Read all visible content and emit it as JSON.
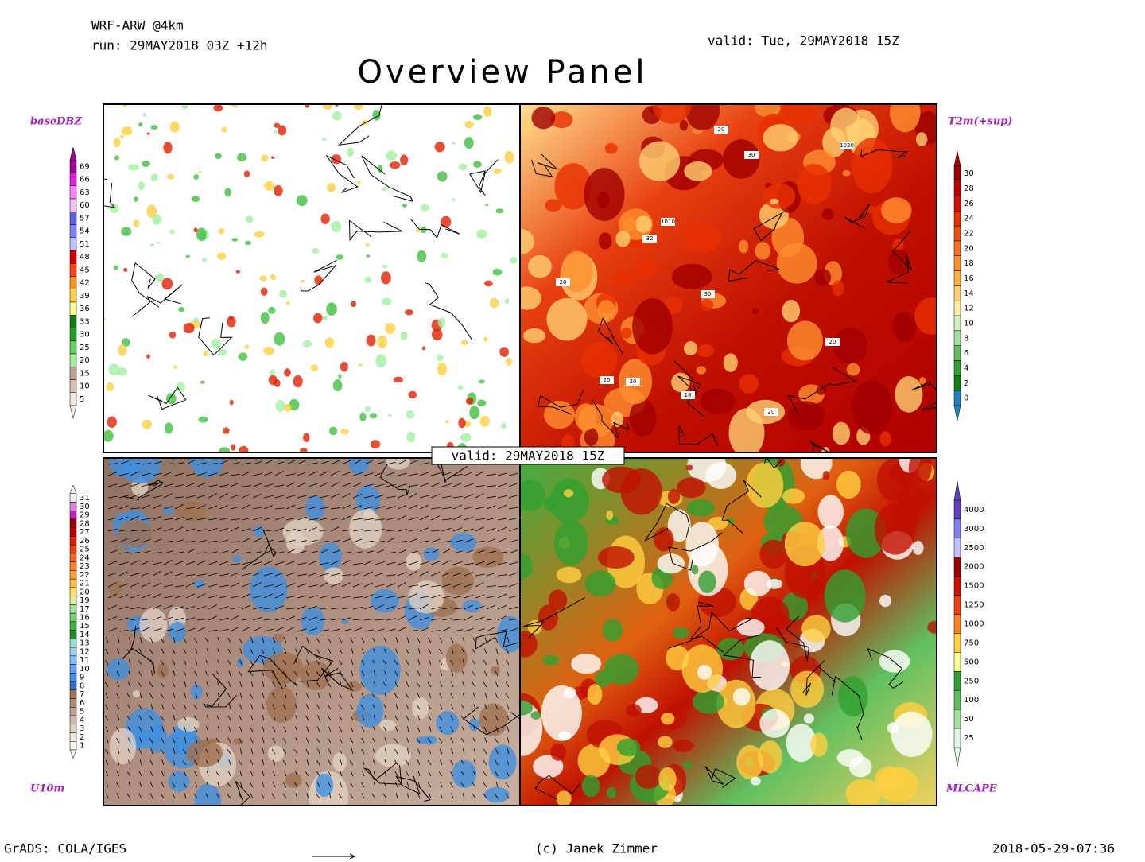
{
  "header": {
    "model": "WRF-ARW @4km",
    "run": "run: 29MAY2018 03Z +12h",
    "valid": "valid: Tue, 29MAY2018 15Z",
    "title": "Overview Panel"
  },
  "center_label": "valid: 29MAY2018 15Z",
  "panels": [
    {
      "label": "baseDBZ",
      "scale": [
        69,
        66,
        63,
        60,
        57,
        54,
        51,
        48,
        45,
        42,
        39,
        36,
        33,
        30,
        25,
        20,
        15,
        10,
        5
      ],
      "colors": [
        "#a000a0",
        "#e020e0",
        "#ff80ff",
        "#f0c0f0",
        "#6060e0",
        "#8080ff",
        "#c0c0ff",
        "#d00000",
        "#ff4010",
        "#ff9020",
        "#ffd040",
        "#ffff90",
        "#108010",
        "#20a020",
        "#60d060",
        "#a0f0a0",
        "#c0a090",
        "#d8c0b0",
        "#f0e8e0"
      ]
    },
    {
      "label": "T2m(+sup)",
      "scale": [
        30,
        28,
        26,
        24,
        22,
        20,
        18,
        16,
        14,
        12,
        10,
        8,
        6,
        4,
        2,
        0
      ],
      "colors": [
        "#a00000",
        "#c00000",
        "#d81000",
        "#e83000",
        "#f05010",
        "#f87020",
        "#ff9030",
        "#ffb040",
        "#ffd070",
        "#fff0a0",
        "#d0f0c0",
        "#a0e0a0",
        "#60c060",
        "#30a030",
        "#108010",
        "#2080c0"
      ],
      "map_labels": [
        "1020",
        "1010",
        "30",
        "20",
        "32",
        "20",
        "30",
        "20",
        "20",
        "18",
        "20",
        "20"
      ]
    },
    {
      "label": "U10m",
      "scale": [
        31,
        30,
        29,
        28,
        27,
        26,
        25,
        24,
        23,
        22,
        21,
        20,
        19,
        17,
        16,
        15,
        14,
        13,
        12,
        11,
        10,
        9,
        8,
        7,
        6,
        5,
        4,
        3,
        2,
        1
      ],
      "colors": [
        "#f0f0f0",
        "#e080e0",
        "#c020c0",
        "#a00000",
        "#c00000",
        "#e02000",
        "#f04010",
        "#f86020",
        "#ff8020",
        "#ffa030",
        "#ffc040",
        "#ffe060",
        "#e0f0a0",
        "#a0e0a0",
        "#70d070",
        "#40b040",
        "#209020",
        "#90e0d0",
        "#a0d0f0",
        "#80c0f0",
        "#60a0f0",
        "#4090e0",
        "#3070d0",
        "#a07050",
        "#b08870",
        "#c0a090",
        "#d0b8a8",
        "#e0d0c0",
        "#f0e8e0",
        "#faf6f0"
      ]
    },
    {
      "label": "MLCAPE",
      "scale": [
        4000,
        3000,
        2500,
        2000,
        1500,
        1250,
        1000,
        750,
        500,
        250,
        100,
        50,
        25
      ],
      "colors": [
        "#6040c0",
        "#8080f0",
        "#c0c0ff",
        "#a00000",
        "#d01000",
        "#f04010",
        "#ff8020",
        "#ffd040",
        "#ffff90",
        "#30a030",
        "#60c060",
        "#a0e0a0",
        "#e0f8e0"
      ]
    }
  ],
  "footer": {
    "left": "GrADS: COLA/IGES",
    "center": "(c) Janek Zimmer",
    "right": "2018-05-29-07:36"
  }
}
